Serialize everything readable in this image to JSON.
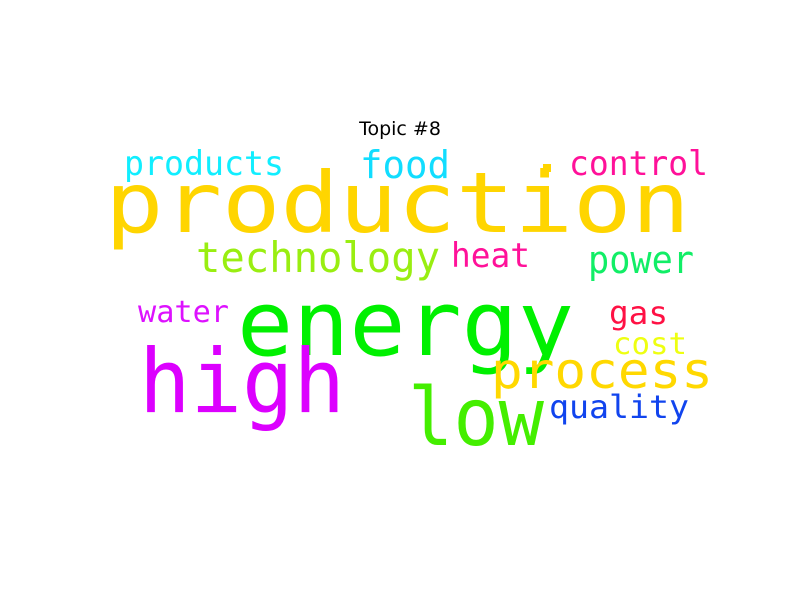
{
  "title": "Topic #8",
  "words": [
    {
      "text": "production",
      "color": "#ffd500"
    },
    {
      "text": "energy",
      "color": "#00f000"
    },
    {
      "text": "high",
      "color": "#dc00ff"
    },
    {
      "text": "low",
      "color": "#44ee00"
    },
    {
      "text": "process",
      "color": "#ffd800"
    },
    {
      "text": "technology",
      "color": "#99ee11"
    },
    {
      "text": "products",
      "color": "#11eeff"
    },
    {
      "text": "food",
      "color": "#11ddff"
    },
    {
      "text": "control",
      "color": "#ff1199"
    },
    {
      "text": "heat",
      "color": "#ff1199"
    },
    {
      "text": "power",
      "color": "#11ee66"
    },
    {
      "text": "water",
      "color": "#dd11ff"
    },
    {
      "text": "gas",
      "color": "#ff1144"
    },
    {
      "text": "cost",
      "color": "#eeff11"
    },
    {
      "text": "quality",
      "color": "#1144ee"
    }
  ]
}
